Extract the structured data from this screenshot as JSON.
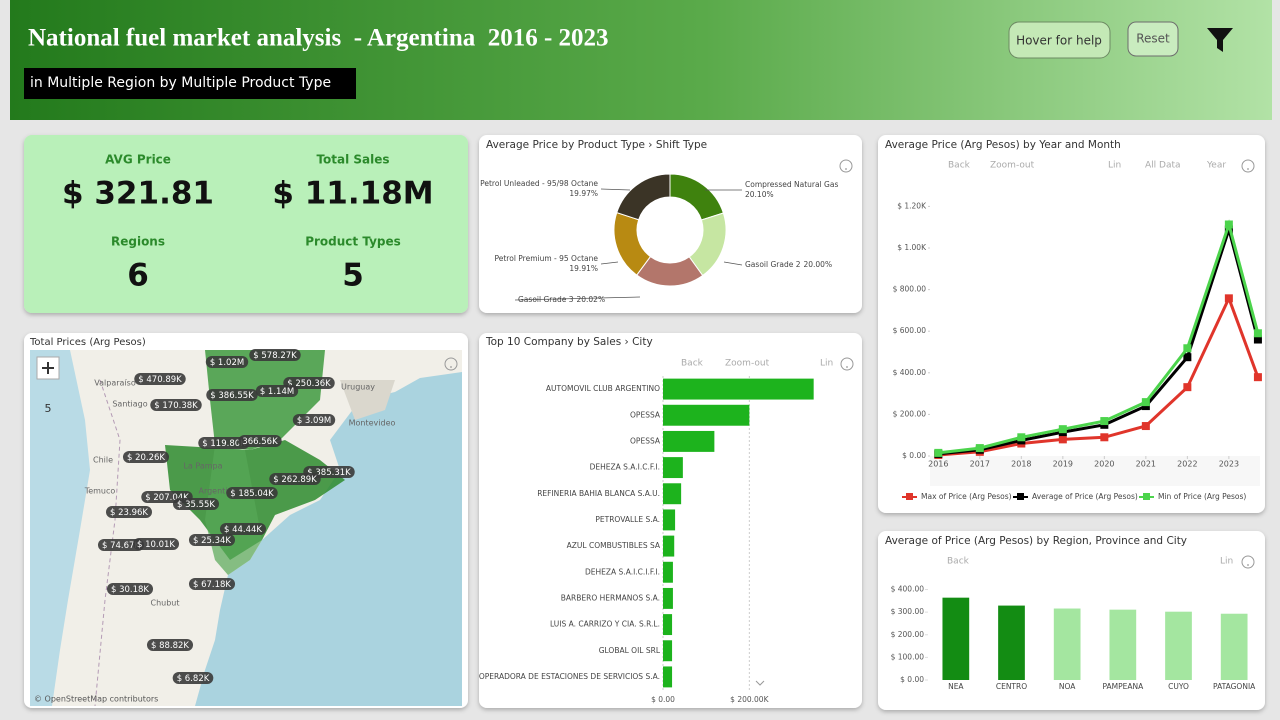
{
  "header": {
    "title": "National fuel market analysis  - Argentina  2016 - 2023",
    "subtitle": "in Multiple Region by Multiple Product Type",
    "buttons": [
      "Hover for help",
      "Reset"
    ]
  },
  "kpis": [
    {
      "label": "AVG Price",
      "value": "$ 321.81"
    },
    {
      "label": "Total Sales",
      "value": "$ 11.18M"
    },
    {
      "label": "Regions",
      "value": "6"
    },
    {
      "label": "Product Types",
      "value": "5"
    }
  ],
  "map": {
    "title": "Total Prices (Arg Pesos)",
    "zoom": "5",
    "attribution": "© OpenStreetMap contributors",
    "labels": [
      "$ 578.27K",
      "$ 1.02M",
      "$ 470.89K",
      "$ 250.36K",
      "$ 386.55K",
      "$ 1.14M",
      "$ 170.38K",
      "$ 3.09M",
      "$ 119.80K",
      "366.56K",
      "$ 20.26K",
      "$ 385.31K",
      "$ 262.89K",
      "$ 185.04K",
      "$ 207.04K",
      "$ 35.55K",
      "$ 23.96K",
      "$ 44.44K",
      "$ 74.67K",
      "$ 10.01K",
      "$ 25.34K",
      "$ 67.18K",
      "$ 30.18K",
      "$ 88.82K",
      "$ 6.82K"
    ],
    "places": [
      "Valparaíso",
      "Santiago",
      "Chile",
      "Temuco",
      "Uruguay",
      "Montevideo",
      "La Pampa",
      "Argentina",
      "Chubut"
    ]
  },
  "chart_data": [
    {
      "type": "pie",
      "donut": true,
      "title": "Average Price by Product Type › Shift Type",
      "categories": [
        "Compressed Natural Gas",
        "Gasoil Grade 2",
        "Gasoil Grade 3",
        "Petrol Premium - 95 Octane",
        "Petrol Unleaded - 95/98 Octane"
      ],
      "values": [
        20.1,
        20.0,
        20.02,
        19.91,
        19.97
      ],
      "value_labels": [
        "20.10%",
        "20.00%",
        "20.02%",
        "19.91%",
        "19.97%"
      ],
      "colors": [
        "#3f820e",
        "#c6e6a2",
        "#b3766b",
        "#b88a12",
        "#3b3426"
      ]
    },
    {
      "type": "bar",
      "orientation": "horizontal",
      "title": "Top 10 Company by Sales › City",
      "toolbar": [
        "Back",
        "Zoom-out",
        "Lin"
      ],
      "categories": [
        "AUTOMOVIL CLUB ARGENTINO",
        "OPESSA",
        "OPESSA",
        "DEHEZA S.A.I.C.F.I.",
        "REFINERIA BAHIA BLANCA S.A.U.",
        "PETROVALLE S.A.",
        "AZUL COMBUSTIBLES SA",
        "DEHEZA S.A.I.C.I.F.I.",
        "BARBERO HERMANOS S.A.",
        "LUIS A. CARRIZO Y CIA. S.R.L.",
        "GLOBAL OIL SRL",
        "OPERADORA DE ESTACIONES DE SERVICIOS S.A."
      ],
      "values": [
        349000,
        200000,
        119000,
        46000,
        42000,
        28000,
        26000,
        23000,
        23000,
        21000,
        21000,
        21000
      ],
      "color": "#1db31d",
      "xlim": [
        0,
        410000
      ],
      "xticks": [
        {
          "value": 0,
          "label": "$ 0.00"
        },
        {
          "value": 200000,
          "label": "$ 200.00K"
        }
      ],
      "grid": true
    },
    {
      "type": "line",
      "title": "Average Price (Arg Pesos) by Year and Month",
      "toolbar": [
        "Back",
        "Zoom-out",
        "Lin",
        "All Data",
        "Year"
      ],
      "x": [
        2016,
        2017,
        2018,
        2019,
        2020,
        2021,
        2022,
        2023,
        2023.7
      ],
      "series": [
        {
          "name": "Max of Price (Arg Pesos)",
          "color": "#e0352b",
          "values": [
            5,
            20,
            60,
            80,
            90,
            144,
            331,
            758,
            379
          ]
        },
        {
          "name": "Average of Price (Arg Pesos)",
          "color": "#000000",
          "values": [
            10,
            30,
            75,
            115,
            150,
            240,
            475,
            1089,
            560
          ]
        },
        {
          "name": "Min of Price (Arg Pesos)",
          "color": "#4cd44c",
          "values": [
            15,
            38,
            90,
            129,
            168,
            259,
            518,
            1113,
            590
          ]
        }
      ],
      "xlim": [
        2015.8,
        2023.75
      ],
      "xticks": [
        2016,
        2017,
        2018,
        2019,
        2020,
        2021,
        2022,
        2023
      ],
      "ylim": [
        0,
        1250
      ],
      "yticks": [
        {
          "value": 0,
          "label": "$ 0.00"
        },
        {
          "value": 200,
          "label": "$ 200.00"
        },
        {
          "value": 400,
          "label": "$ 400.00"
        },
        {
          "value": 600,
          "label": "$ 600.00"
        },
        {
          "value": 800,
          "label": "$ 800.00"
        },
        {
          "value": 1000,
          "label": "$ 1.00K"
        },
        {
          "value": 1200,
          "label": "$ 1.20K"
        }
      ],
      "legend": "bottom"
    },
    {
      "type": "bar",
      "orientation": "vertical",
      "title": "Average of Price (Arg Pesos) by Region, Province and City",
      "toolbar": [
        "Back",
        "Lin"
      ],
      "categories": [
        "NEA",
        "CENTRO",
        "NOA",
        "PAMPEANA",
        "CUYO",
        "PATAGONIA"
      ],
      "values": [
        364,
        329,
        316,
        311,
        302,
        293
      ],
      "colors": [
        "#138c13",
        "#138c13",
        "#a4e6a0",
        "#a4e6a0",
        "#a4e6a0",
        "#a4e6a0"
      ],
      "ylim": [
        0,
        420
      ],
      "yticks": [
        {
          "value": 0,
          "label": "$ 0.00"
        },
        {
          "value": 100,
          "label": "$ 100.00"
        },
        {
          "value": 200,
          "label": "$ 200.00"
        },
        {
          "value": 300,
          "label": "$ 300.00"
        },
        {
          "value": 400,
          "label": "$ 400.00"
        }
      ]
    }
  ]
}
